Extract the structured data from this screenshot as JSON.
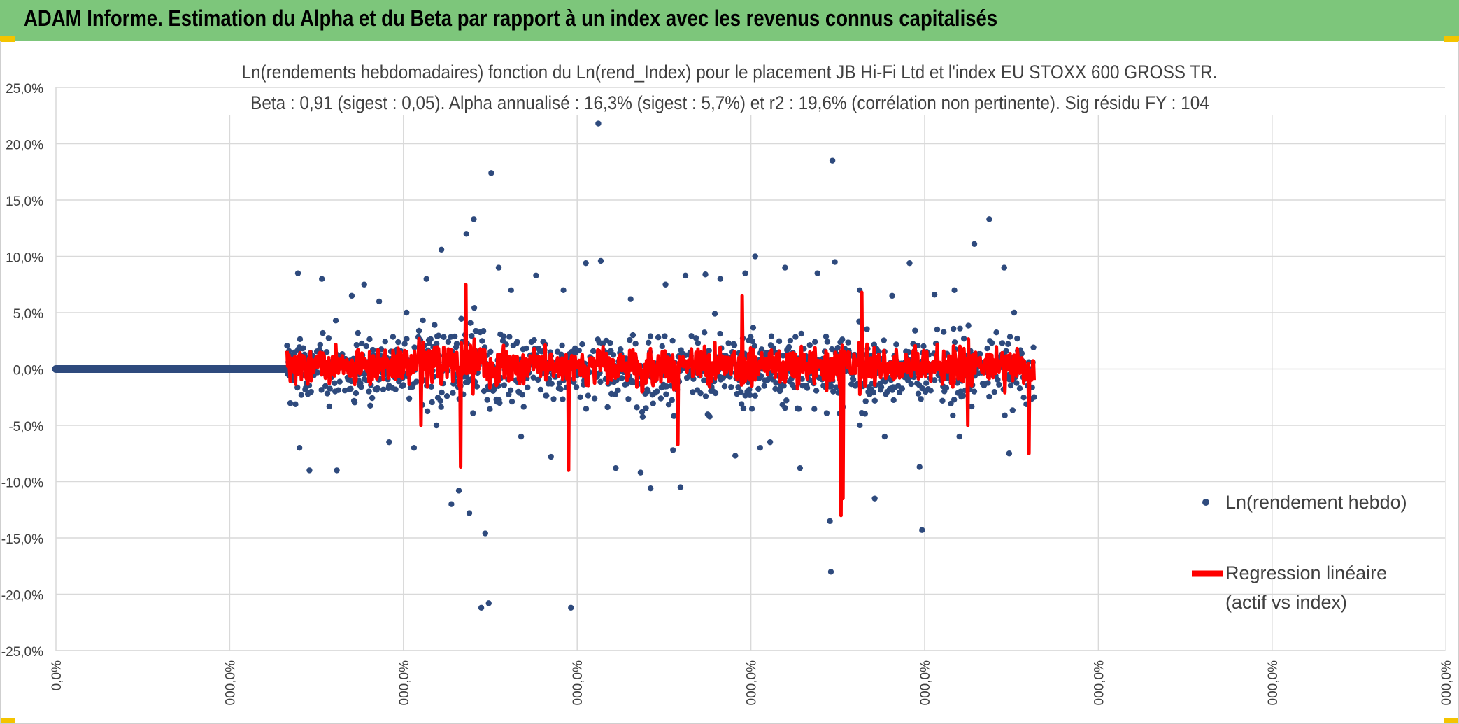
{
  "header": {
    "title": "ADAM Informe. Estimation du Alpha et du Beta par rapport à un index avec les revenus connus capitalisés"
  },
  "chart_data": {
    "type": "scatter",
    "title": "Ln(rendements hebdomadaires) fonction du Ln(rend_Index) pour le placement JB Hi-Fi Ltd  et l'index EU STOXX 600 GROSS TR.",
    "subtitle": "Beta : 0,91 (sigest : 0,05). Alpha annualisé : 16,3% (sigest : 5,7%) et r2 : 19,6% (corrélation non pertinente). Sig résidu FY : 104",
    "ylim": [
      -0.25,
      0.25
    ],
    "y_ticks": [
      "25,0%",
      "20,0%",
      "15,0%",
      "10,0%",
      "5,0%",
      "0,0%",
      "-5,0%",
      "-10,0%",
      "-15,0%",
      "-20,0%",
      "-25,0%"
    ],
    "x_ticks": [
      "0,0%",
      "000,0%",
      "000,0%",
      "000,0%",
      "000,0%",
      "000,0%",
      "000,0%",
      "000,0%",
      "000,0%"
    ],
    "series": [
      {
        "name": "Ln(rendement hebdo)",
        "color": "#2e4a7d",
        "marker": "circle"
      },
      {
        "name": "Regression linéaire (actif vs index)",
        "color": "#ff0000",
        "marker": "line"
      }
    ],
    "legend": {
      "scatter_label": "Ln(rendement hebdo)",
      "regression_label_line1": "Regression linéaire",
      "regression_label_line2": "(actif vs index)",
      "position": "bottom-right"
    },
    "outliers": [
      [
        0.022,
        0.085
      ],
      [
        0.025,
        -0.07
      ],
      [
        0.045,
        -0.09
      ],
      [
        0.07,
        0.08
      ],
      [
        0.1,
        -0.09
      ],
      [
        0.13,
        0.065
      ],
      [
        0.155,
        0.075
      ],
      [
        0.185,
        0.06
      ],
      [
        0.205,
        -0.065
      ],
      [
        0.24,
        0.05
      ],
      [
        0.255,
        -0.07
      ],
      [
        0.28,
        0.08
      ],
      [
        0.3,
        -0.05
      ],
      [
        0.31,
        0.106
      ],
      [
        0.33,
        -0.12
      ],
      [
        0.345,
        -0.108
      ],
      [
        0.36,
        0.12
      ],
      [
        0.366,
        -0.128
      ],
      [
        0.375,
        0.133
      ],
      [
        0.39,
        -0.212
      ],
      [
        0.398,
        -0.146
      ],
      [
        0.405,
        -0.208
      ],
      [
        0.41,
        0.174
      ],
      [
        0.425,
        0.09
      ],
      [
        0.45,
        0.07
      ],
      [
        0.47,
        -0.06
      ],
      [
        0.5,
        0.083
      ],
      [
        0.53,
        -0.078
      ],
      [
        0.555,
        0.07
      ],
      [
        0.57,
        -0.212
      ],
      [
        0.6,
        0.094
      ],
      [
        0.625,
        0.218
      ],
      [
        0.63,
        0.096
      ],
      [
        0.66,
        -0.088
      ],
      [
        0.69,
        0.062
      ],
      [
        0.71,
        -0.092
      ],
      [
        0.73,
        -0.106
      ],
      [
        0.76,
        0.075
      ],
      [
        0.775,
        -0.072
      ],
      [
        0.79,
        -0.105
      ],
      [
        0.8,
        0.083
      ],
      [
        0.84,
        0.084
      ],
      [
        0.87,
        0.08
      ],
      [
        0.9,
        -0.077
      ],
      [
        0.92,
        0.085
      ],
      [
        0.94,
        0.1
      ],
      [
        0.97,
        -0.065
      ],
      [
        1.0,
        0.09
      ],
      [
        1.03,
        -0.088
      ],
      [
        1.065,
        0.085
      ],
      [
        1.09,
        -0.135
      ],
      [
        1.092,
        -0.18
      ],
      [
        1.095,
        0.185
      ],
      [
        1.1,
        0.095
      ],
      [
        1.15,
        0.07
      ],
      [
        1.18,
        -0.115
      ],
      [
        1.215,
        0.065
      ],
      [
        1.25,
        0.094
      ],
      [
        1.27,
        -0.087
      ],
      [
        1.275,
        -0.143
      ],
      [
        1.3,
        0.066
      ],
      [
        1.34,
        0.07
      ],
      [
        1.38,
        0.111
      ],
      [
        1.41,
        0.133
      ],
      [
        1.44,
        0.09
      ],
      [
        1.45,
        -0.075
      ],
      [
        1.46,
        0.05
      ],
      [
        1.35,
        -0.06
      ],
      [
        1.2,
        -0.06
      ],
      [
        0.95,
        -0.07
      ]
    ]
  }
}
